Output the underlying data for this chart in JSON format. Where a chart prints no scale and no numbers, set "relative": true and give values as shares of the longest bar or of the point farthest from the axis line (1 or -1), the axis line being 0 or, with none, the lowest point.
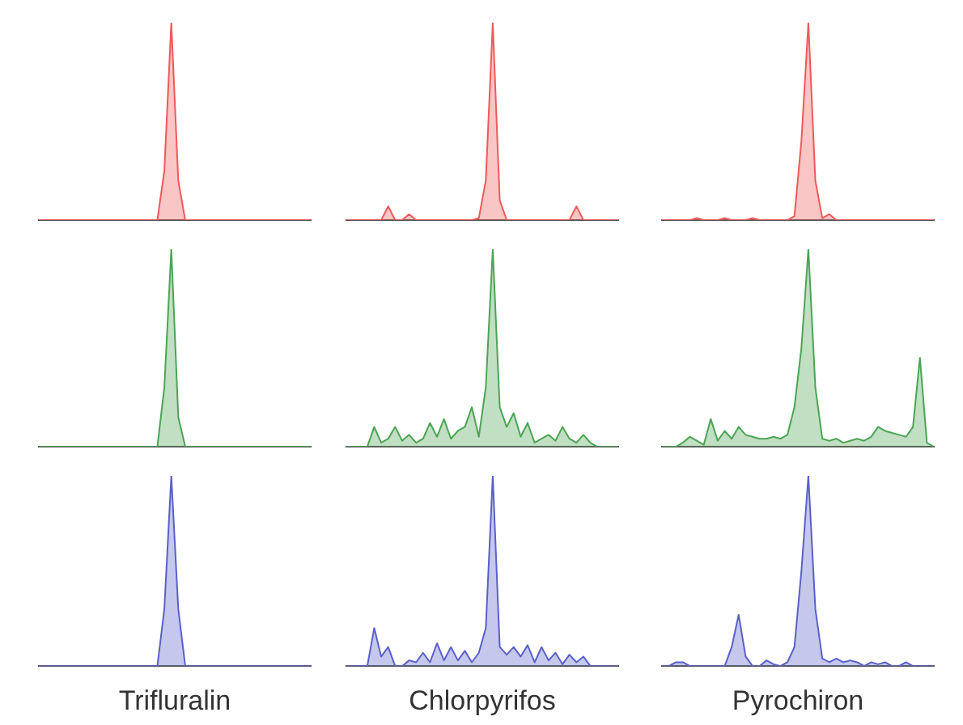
{
  "chart_data": [
    {
      "type": "area",
      "relative": true,
      "tick_labels": false,
      "categories": [
        null,
        null,
        null,
        null,
        null,
        null,
        null,
        null,
        null,
        null,
        null,
        null,
        null,
        null,
        null,
        null,
        null,
        null,
        null,
        null,
        null,
        null,
        null,
        null,
        null,
        null,
        null,
        null,
        null,
        null,
        null,
        null,
        null,
        null,
        null,
        null,
        null,
        null,
        null,
        null
      ],
      "series": [
        {
          "color": "#ee5a5a",
          "values": [
            0,
            0,
            0,
            0,
            0,
            0,
            0,
            0,
            0,
            0,
            0,
            0,
            0,
            0,
            0,
            0,
            0,
            0,
            0.25,
            1,
            0.2,
            0,
            0,
            0,
            0,
            0,
            0,
            0,
            0,
            0,
            0,
            0,
            0,
            0,
            0,
            0,
            0,
            0,
            0,
            0
          ]
        }
      ]
    },
    {
      "type": "area",
      "relative": true,
      "tick_labels": false,
      "categories": [
        null,
        null,
        null,
        null,
        null,
        null,
        null,
        null,
        null,
        null,
        null,
        null,
        null,
        null,
        null,
        null,
        null,
        null,
        null,
        null,
        null,
        null,
        null,
        null,
        null,
        null,
        null,
        null,
        null,
        null,
        null,
        null,
        null,
        null,
        null,
        null,
        null,
        null,
        null,
        null
      ],
      "series": [
        {
          "color": "#ee5a5a",
          "values": [
            0,
            0,
            0,
            0,
            0,
            0,
            0.07,
            0,
            0,
            0.03,
            0,
            0,
            0,
            0,
            0,
            0,
            0,
            0,
            0,
            0.01,
            0.2,
            1,
            0.1,
            0,
            0,
            0,
            0,
            0,
            0,
            0,
            0,
            0,
            0,
            0.07,
            0,
            0,
            0,
            0,
            0,
            0
          ]
        }
      ]
    },
    {
      "type": "area",
      "relative": true,
      "tick_labels": false,
      "categories": [
        null,
        null,
        null,
        null,
        null,
        null,
        null,
        null,
        null,
        null,
        null,
        null,
        null,
        null,
        null,
        null,
        null,
        null,
        null,
        null,
        null,
        null,
        null,
        null,
        null,
        null,
        null,
        null,
        null,
        null,
        null,
        null,
        null,
        null,
        null,
        null,
        null,
        null,
        null,
        null
      ],
      "series": [
        {
          "color": "#ee5a5a",
          "values": [
            0,
            0,
            0,
            0,
            0,
            0.01,
            0,
            0,
            0,
            0.01,
            0,
            0,
            0,
            0.01,
            0,
            0,
            0,
            0,
            0,
            0.02,
            0.4,
            1,
            0.2,
            0.01,
            0.03,
            0,
            0,
            0,
            0,
            0,
            0,
            0,
            0,
            0,
            0,
            0,
            0,
            0,
            0,
            0
          ]
        }
      ]
    },
    {
      "type": "area",
      "relative": true,
      "tick_labels": false,
      "categories": [
        null,
        null,
        null,
        null,
        null,
        null,
        null,
        null,
        null,
        null,
        null,
        null,
        null,
        null,
        null,
        null,
        null,
        null,
        null,
        null,
        null,
        null,
        null,
        null,
        null,
        null,
        null,
        null,
        null,
        null,
        null,
        null,
        null,
        null,
        null,
        null,
        null,
        null,
        null,
        null
      ],
      "series": [
        {
          "color": "#4ca454",
          "values": [
            0,
            0,
            0,
            0,
            0,
            0,
            0,
            0,
            0,
            0,
            0,
            0,
            0,
            0,
            0,
            0,
            0,
            0,
            0.3,
            1,
            0.15,
            0,
            0,
            0,
            0,
            0,
            0,
            0,
            0,
            0,
            0,
            0,
            0,
            0,
            0,
            0,
            0,
            0,
            0,
            0
          ]
        }
      ]
    },
    {
      "type": "area",
      "relative": true,
      "tick_labels": false,
      "categories": [
        null,
        null,
        null,
        null,
        null,
        null,
        null,
        null,
        null,
        null,
        null,
        null,
        null,
        null,
        null,
        null,
        null,
        null,
        null,
        null,
        null,
        null,
        null,
        null,
        null,
        null,
        null,
        null,
        null,
        null,
        null,
        null,
        null,
        null,
        null,
        null,
        null,
        null,
        null,
        null
      ],
      "series": [
        {
          "color": "#4ca454",
          "values": [
            0,
            0,
            0,
            0,
            0.1,
            0.02,
            0.04,
            0.1,
            0.03,
            0.06,
            0.02,
            0.04,
            0.12,
            0.05,
            0.14,
            0.04,
            0.08,
            0.1,
            0.2,
            0.05,
            0.3,
            1,
            0.2,
            0.1,
            0.17,
            0.05,
            0.12,
            0.02,
            0.04,
            0.06,
            0.03,
            0.1,
            0.04,
            0.02,
            0.06,
            0.02,
            0,
            0,
            0,
            0
          ]
        }
      ]
    },
    {
      "type": "area",
      "relative": true,
      "tick_labels": false,
      "categories": [
        null,
        null,
        null,
        null,
        null,
        null,
        null,
        null,
        null,
        null,
        null,
        null,
        null,
        null,
        null,
        null,
        null,
        null,
        null,
        null,
        null,
        null,
        null,
        null,
        null,
        null,
        null,
        null,
        null,
        null,
        null,
        null,
        null,
        null,
        null,
        null,
        null,
        null,
        null,
        null
      ],
      "series": [
        {
          "color": "#4ca454",
          "values": [
            0,
            0,
            0,
            0.02,
            0.05,
            0.03,
            0.01,
            0.14,
            0.03,
            0.08,
            0.04,
            0.1,
            0.06,
            0.05,
            0.04,
            0.04,
            0.05,
            0.04,
            0.06,
            0.2,
            0.5,
            1,
            0.3,
            0.04,
            0.03,
            0.04,
            0.02,
            0.03,
            0.04,
            0.03,
            0.05,
            0.1,
            0.08,
            0.07,
            0.06,
            0.05,
            0.1,
            0.45,
            0.02,
            0
          ]
        }
      ]
    },
    {
      "type": "area",
      "relative": true,
      "tick_labels": false,
      "xlabel": "Trifluralin",
      "categories": [
        null,
        null,
        null,
        null,
        null,
        null,
        null,
        null,
        null,
        null,
        null,
        null,
        null,
        null,
        null,
        null,
        null,
        null,
        null,
        null,
        null,
        null,
        null,
        null,
        null,
        null,
        null,
        null,
        null,
        null,
        null,
        null,
        null,
        null,
        null,
        null,
        null,
        null,
        null,
        null
      ],
      "series": [
        {
          "color": "#5a60c8",
          "values": [
            0,
            0,
            0,
            0,
            0,
            0,
            0,
            0,
            0,
            0,
            0,
            0,
            0,
            0,
            0,
            0,
            0,
            0,
            0.3,
            1,
            0.3,
            0,
            0,
            0,
            0,
            0,
            0,
            0,
            0,
            0,
            0,
            0,
            0,
            0,
            0,
            0,
            0,
            0,
            0,
            0
          ]
        }
      ]
    },
    {
      "type": "area",
      "relative": true,
      "tick_labels": false,
      "xlabel": "Chlorpyrifos",
      "categories": [
        null,
        null,
        null,
        null,
        null,
        null,
        null,
        null,
        null,
        null,
        null,
        null,
        null,
        null,
        null,
        null,
        null,
        null,
        null,
        null,
        null,
        null,
        null,
        null,
        null,
        null,
        null,
        null,
        null,
        null,
        null,
        null,
        null,
        null,
        null,
        null,
        null,
        null,
        null,
        null
      ],
      "series": [
        {
          "color": "#5a60c8",
          "values": [
            0,
            0,
            0,
            0,
            0.2,
            0.05,
            0.1,
            0,
            0,
            0.03,
            0.02,
            0.07,
            0.02,
            0.12,
            0.03,
            0.1,
            0.03,
            0.08,
            0.02,
            0.07,
            0.2,
            1,
            0.1,
            0.06,
            0.1,
            0.05,
            0.11,
            0.02,
            0.1,
            0.03,
            0.07,
            0.01,
            0.06,
            0.02,
            0.05,
            0,
            0,
            0,
            0,
            0
          ]
        }
      ]
    },
    {
      "type": "area",
      "relative": true,
      "tick_labels": false,
      "xlabel": "Pyrochiron",
      "categories": [
        null,
        null,
        null,
        null,
        null,
        null,
        null,
        null,
        null,
        null,
        null,
        null,
        null,
        null,
        null,
        null,
        null,
        null,
        null,
        null,
        null,
        null,
        null,
        null,
        null,
        null,
        null,
        null,
        null,
        null,
        null,
        null,
        null,
        null,
        null,
        null,
        null,
        null,
        null,
        null
      ],
      "series": [
        {
          "color": "#5a60c8",
          "values": [
            0,
            0,
            0.02,
            0.02,
            0,
            0,
            0,
            0,
            0,
            0,
            0.1,
            0.27,
            0.05,
            0,
            0,
            0.03,
            0.01,
            0,
            0.02,
            0.1,
            0.5,
            1,
            0.3,
            0.04,
            0.02,
            0.04,
            0.02,
            0.03,
            0.02,
            0,
            0.02,
            0.01,
            0.02,
            0,
            0,
            0.02,
            0,
            0,
            0,
            0
          ]
        }
      ]
    }
  ]
}
